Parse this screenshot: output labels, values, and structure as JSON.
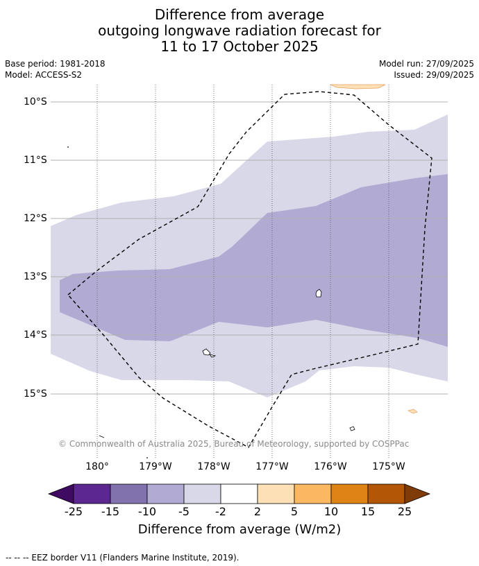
{
  "title": {
    "line1": "Difference from average",
    "line2": "outgoing longwave radiation forecast for",
    "line3": "11 to 17 October 2025"
  },
  "meta": {
    "base_period": "Base period: 1981-2018",
    "model": "Model: ACCESS-S2",
    "model_run": "Model run: 27/09/2025",
    "issued": "Issued: 29/09/2025"
  },
  "axes": {
    "lat_labels": [
      "10°S",
      "11°S",
      "12°S",
      "13°S",
      "14°S",
      "15°S"
    ],
    "lon_labels": [
      "180°",
      "179°W",
      "178°W",
      "177°W",
      "176°W",
      "175°W"
    ]
  },
  "colorbar": {
    "labels": [
      "-25",
      "-15",
      "-10",
      "-5",
      "-2",
      "2",
      "5",
      "10",
      "15",
      "25"
    ],
    "colors": [
      "#3f0a62",
      "#5c2790",
      "#8171ad",
      "#b1aad3",
      "#d8d8e9",
      "#ffffff",
      "#fde0b6",
      "#fbb762",
      "#e08316",
      "#b35706",
      "#7f3b08"
    ],
    "title": "Difference from average (W/m2)"
  },
  "map": {
    "colors": {
      "light": "#d8d8e9",
      "mid": "#b1aad3",
      "orange": "#fde0b6",
      "grid": "#b0b0b0"
    }
  },
  "credit": "© Commonwealth of Australia 2025, Bureau of Meteorology, supported by COSPPac",
  "legend_note": "--  --  -- EEZ border V11 (Flanders Marine Institute, 2019)."
}
